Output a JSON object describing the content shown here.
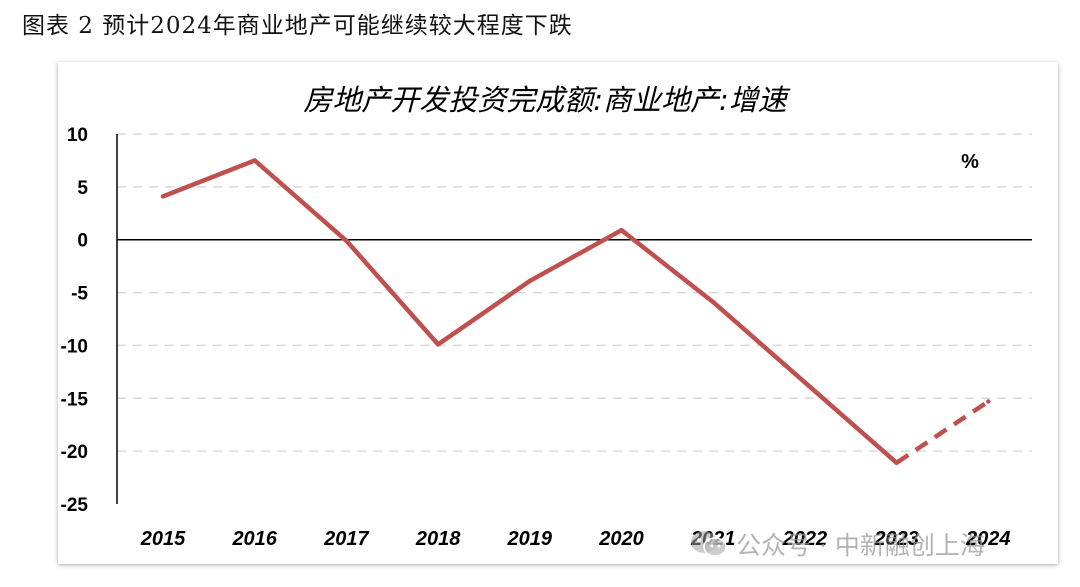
{
  "figure_caption": "图表 2 预计2024年商业地产可能继续较大程度下跌",
  "watermark": {
    "text": "公众号 · 中新融创上海",
    "icon": "wechat-icon"
  },
  "colors": {
    "line": "#C0504D",
    "grid": "#D9D9D9",
    "axis": "#000000",
    "text": "#000000"
  },
  "chart_data": {
    "type": "line",
    "title": "房地产开发投资完成额:商业地产:增速",
    "unit_label": "%",
    "categories": [
      "2015",
      "2016",
      "2017",
      "2018",
      "2019",
      "2020",
      "2021",
      "2022",
      "2023",
      "2024"
    ],
    "series": [
      {
        "values": [
          4.1,
          7.5,
          -0.1,
          -9.9,
          -3.9,
          0.9,
          -5.9,
          -13.5,
          -21.1,
          -15.3
        ],
        "dashed_from_index": 8
      }
    ],
    "yticks": [
      "10",
      "5",
      "0",
      "-5",
      "-10",
      "-15",
      "-20",
      "-25"
    ],
    "ylim": [
      -25,
      10
    ],
    "grid": "horizontal-dashed",
    "legend": "none"
  }
}
